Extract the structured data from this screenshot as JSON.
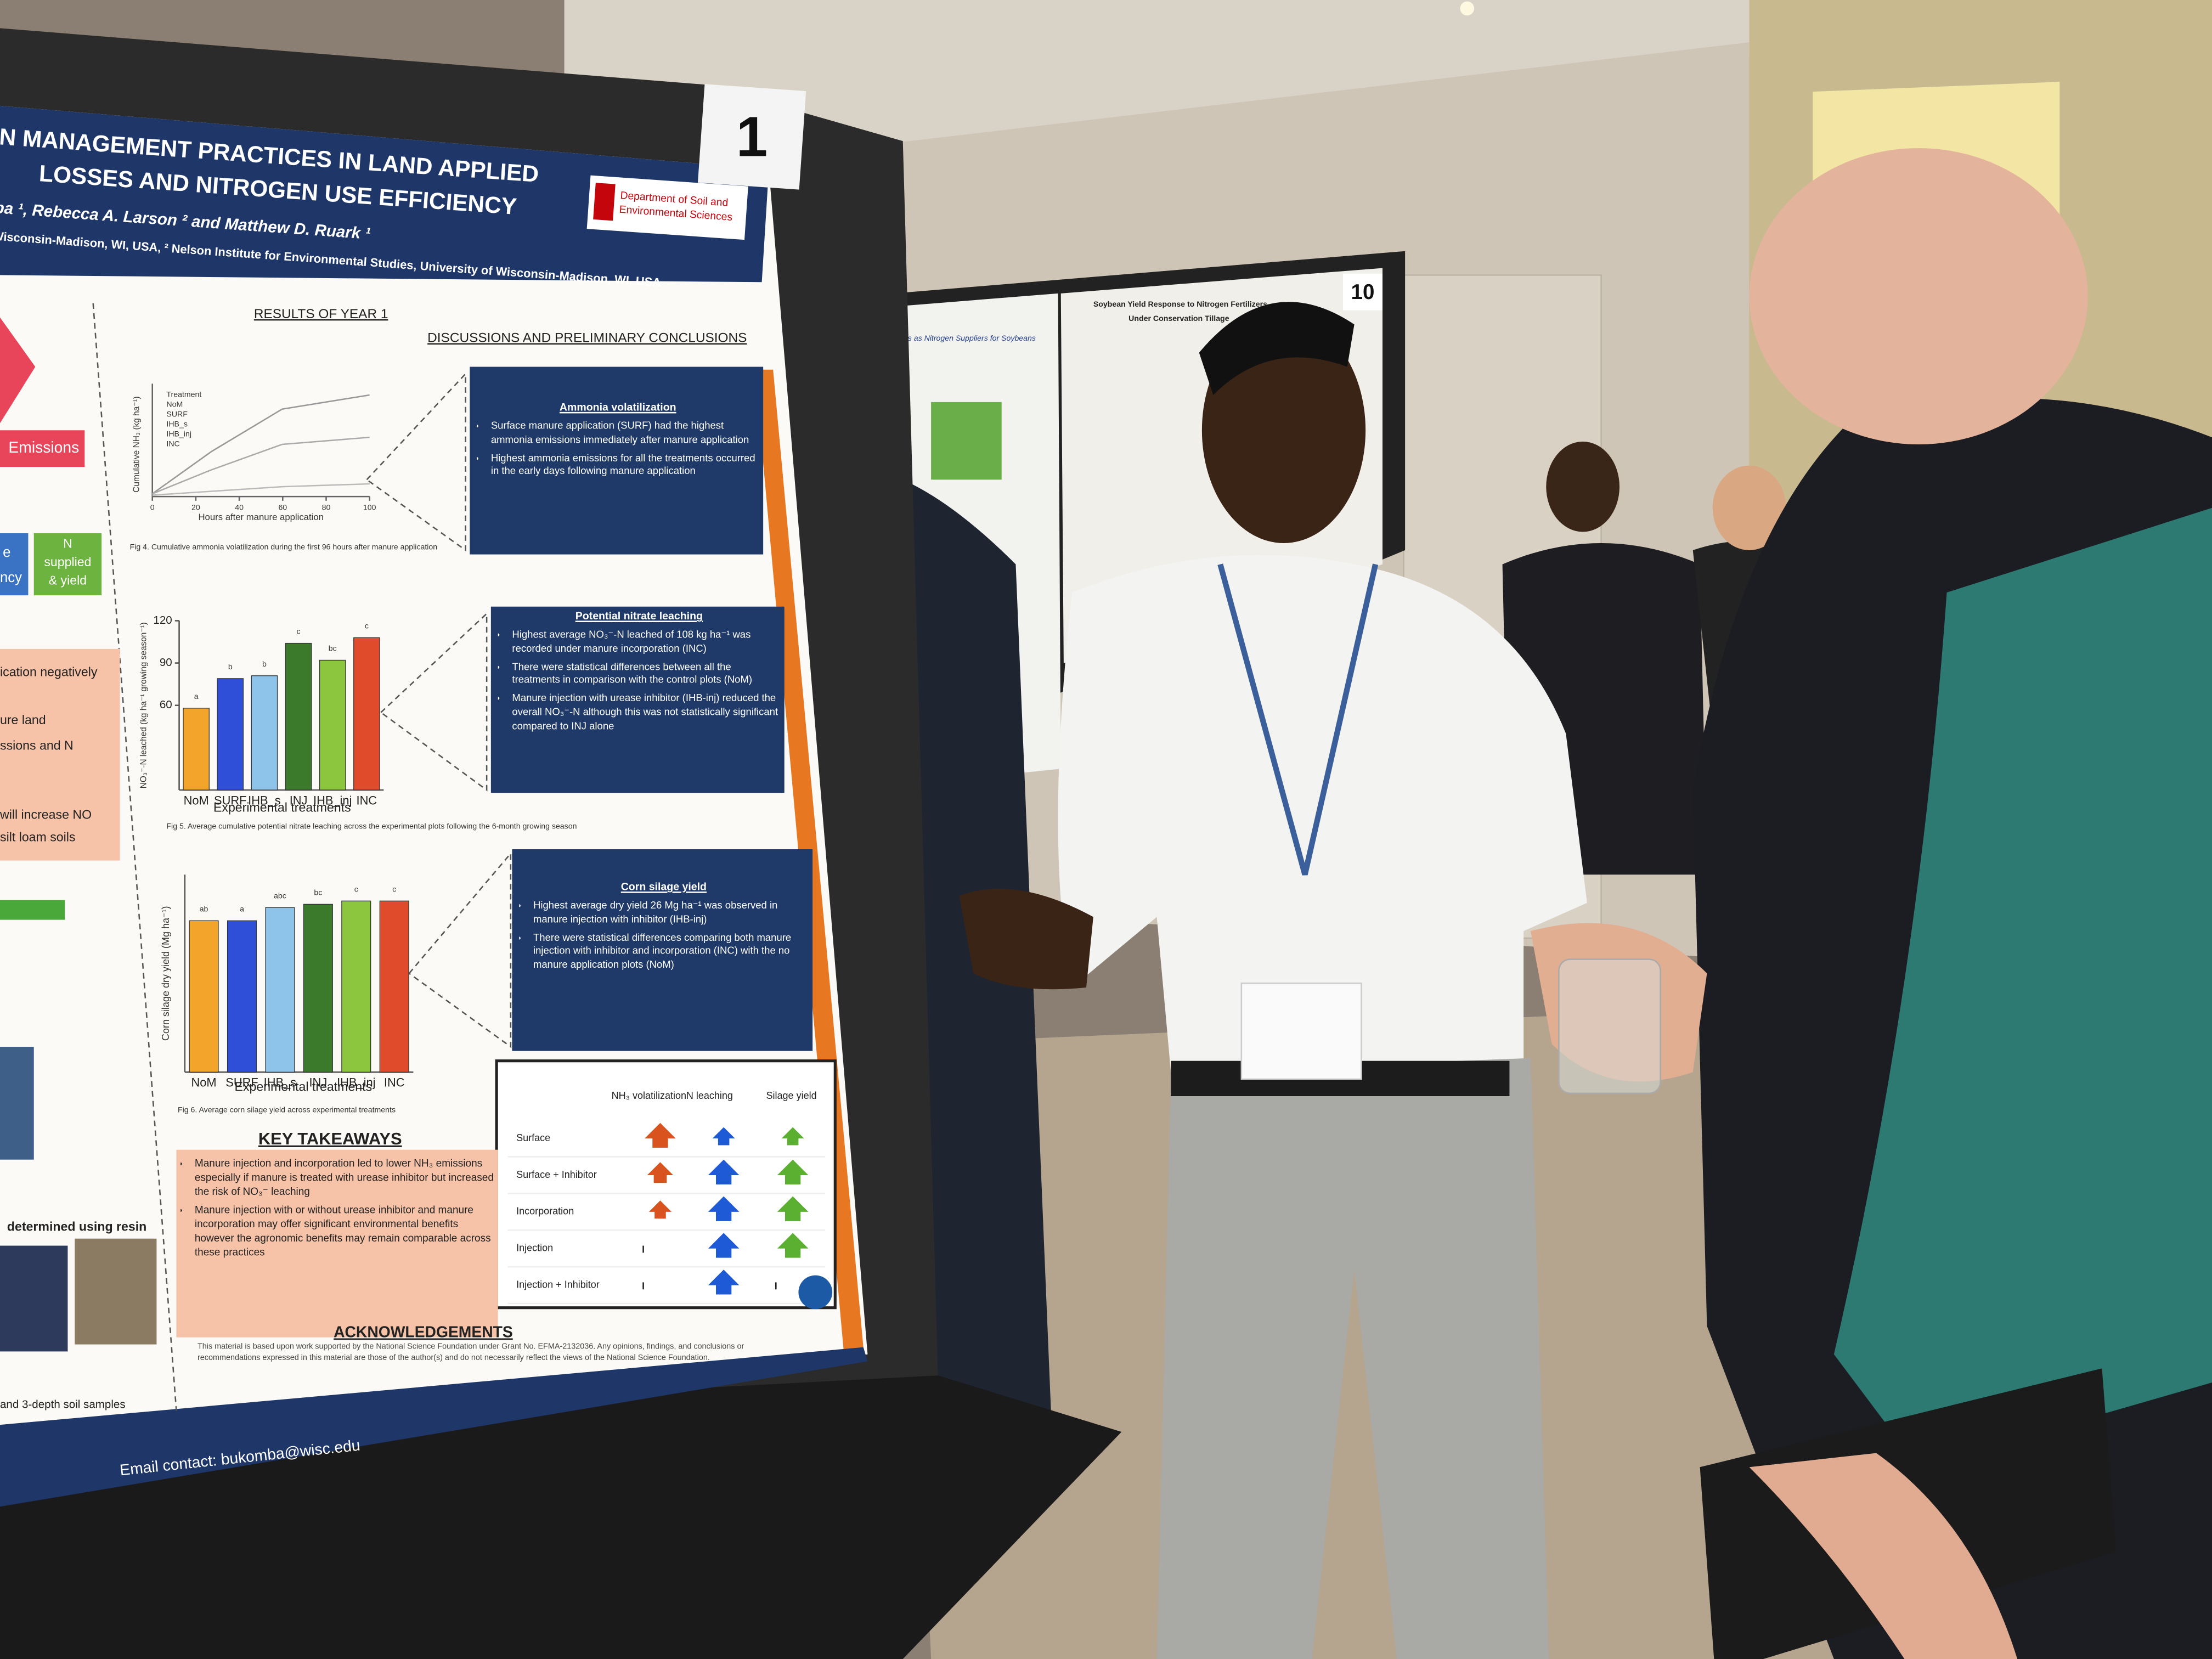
{
  "poster_number": "1",
  "title": [
    "N MANAGEMENT PRACTICES IN LAND APPLIED",
    "LOSSES AND NITROGEN USE EFFICIENCY"
  ],
  "authors": "ba ¹, Rebecca A. Larson ² and  Matthew D. Ruark ¹",
  "affiliation": "Wisconsin-Madison, WI, USA, ² Nelson Institute for Environmental Studies, University of Wisconsin-Madison, WI, USA",
  "logo": [
    "Department of Soil and",
    "Environmental Sciences"
  ],
  "left_panel": [
    "Emissions",
    "e",
    "ncy",
    "N",
    "supplied",
    "& yield",
    "ication negatively",
    "ure land",
    "ssions and N",
    "will increase NO",
    "silt loam soils",
    "determined using resin",
    "and 3-depth soil samples"
  ],
  "results": {
    "heading": "RESULTS OF YEAR 1",
    "fig4": {
      "legend": [
        "Treatment",
        "NoM",
        "SURF",
        "IHB_s",
        "IHB_inj",
        "INC"
      ],
      "ylabel": "Cumulative NH₃ (kg ha⁻¹)",
      "xlabel": "Hours after manure application",
      "xlim": [
        0,
        100
      ],
      "xticks": [
        0,
        20,
        40,
        60,
        80,
        100
      ],
      "caption": "Fig 4. Cumulative ammonia volatilization during the first 96 hours after manure application"
    },
    "nitrate_chart": {
      "type": "bar",
      "categories": [
        "NoM",
        "SURF",
        "IHB_s",
        "INJ",
        "IHB_inj",
        "INC"
      ],
      "values": [
        58,
        79,
        81,
        104,
        92,
        108
      ],
      "letters": [
        "a",
        "b",
        "b",
        "c",
        "bc",
        "c"
      ],
      "colors": [
        "#f2a52a",
        "#2f4fd8",
        "#8fc4ea",
        "#3a7a2a",
        "#8cc63f",
        "#e04b2b"
      ],
      "ylim": [
        0,
        120
      ],
      "yticks": [
        60,
        90,
        120
      ],
      "ylabel": "NO₃⁻-N leached (kg ha⁻¹ growing season⁻¹)",
      "xlabel": "Experimental treatments",
      "caption": "Fig 5. Average cumulative potential nitrate leaching across the experimental plots following the 6-month growing season"
    },
    "yield_chart": {
      "type": "bar",
      "categories": [
        "NoM",
        "SURF",
        "IHB_s",
        "INJ",
        "IHB_inj",
        "INC"
      ],
      "values": [
        23,
        23,
        25,
        25.5,
        26,
        26
      ],
      "letters": [
        "ab",
        "a",
        "abc",
        "bc",
        "c",
        "c"
      ],
      "colors": [
        "#f2a52a",
        "#2f4fd8",
        "#8fc4ea",
        "#3a7a2a",
        "#8cc63f",
        "#e04b2b"
      ],
      "ylim": [
        0,
        30
      ],
      "ylabel": "Corn silage dry yield (Mg ha⁻¹)",
      "xlabel": "Experimental treatments",
      "caption": "Fig 6. Average corn silage yield across experimental treatments"
    }
  },
  "discussion": {
    "heading": "DISCUSSIONS  AND PRELIMINARY CONCLUSIONS",
    "sections": [
      {
        "title": "Ammonia volatilization",
        "bullets": [
          "Surface manure application (SURF) had the highest ammonia emissions immediately after manure application",
          "Highest ammonia emissions for all the treatments occurred in the early days following manure application"
        ]
      },
      {
        "title": "Potential nitrate leaching",
        "bullets": [
          "Highest average NO₃⁻-N leached of 108 kg ha⁻¹ was recorded under manure incorporation (INC)",
          "There were statistical differences between all the treatments in comparison with the control plots (NoM)",
          "Manure injection with urease inhibitor (IHB-inj) reduced the overall NO₃⁻-N although this was not statistically significant compared to INJ alone"
        ]
      },
      {
        "title": "Corn silage yield",
        "bullets": [
          "Highest average dry yield 26 Mg ha⁻¹ was observed in manure injection with inhibitor (IHB-inj)",
          "There were statistical differences comparing both manure injection with inhibitor and  incorporation (INC) with the no manure application plots (NoM)"
        ]
      }
    ]
  },
  "table": {
    "headers": [
      "NH₃ volatilization",
      "N leaching",
      "Silage yield"
    ],
    "rows": [
      "Surface",
      "Surface + Inhibitor",
      "Incorporation",
      "Injection",
      "Injection + Inhibitor"
    ]
  },
  "takeaways": {
    "heading": "KEY TAKEAWAYS",
    "bullets": [
      "Manure injection and incorporation led to lower NH₃ emissions especially if manure is treated with urease inhibitor but increased the risk of NO₃⁻ leaching",
      "Manure injection with or without urease inhibitor and manure incorporation may offer significant environmental benefits however the agronomic benefits may remain comparable across these practices"
    ]
  },
  "acknowledgements": {
    "heading": "ACKNOWLEDGEMENTS",
    "text": "This material is based upon work supported by the National Science Foundation under Grant No. EFMA-2132036. Any opinions, findings, and conclusions or recommendations expressed in this material are those of the author(s) and do not necessarily reflect the views of the National Science Foundation."
  },
  "email": "Email contact: bukomba@wisc.edu",
  "background_poster": {
    "number": "10",
    "titles": [
      "Biologicals as Nitrogen Suppliers for Soybeans",
      "Soybean Yield Response to Nitrogen Fertilizers",
      "Under Conservation Tillage"
    ]
  }
}
